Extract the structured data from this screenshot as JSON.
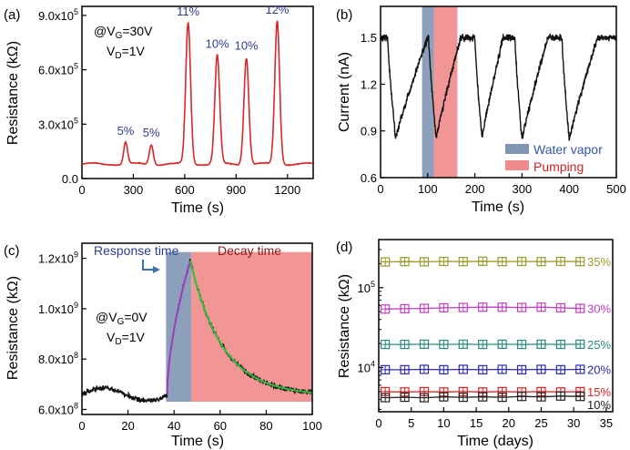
{
  "chart_data": [
    {
      "panel_label": "(a)",
      "type": "line",
      "xlabel": "Time (s)",
      "ylabel": "Resistance (kΩ)",
      "xlim": [
        0,
        1350
      ],
      "ylim": [
        0,
        950000
      ],
      "xticks": [
        0,
        300,
        600,
        900,
        1200
      ],
      "xtick_labels": [
        "0",
        "300",
        "600",
        "900",
        "1200"
      ],
      "yticks": [
        0,
        300000,
        600000,
        900000
      ],
      "ytick_labels": [
        {
          "mantissa": "0.0",
          "exp": ""
        },
        {
          "mantissa": "3.0x10",
          "exp": "5"
        },
        {
          "mantissa": "6.0x10",
          "exp": "5"
        },
        {
          "mantissa": "9.0x10",
          "exp": "5"
        }
      ],
      "series": [
        {
          "name": "Resistance",
          "color": "#d62728"
        }
      ],
      "baseline": 80000,
      "peaks": [
        {
          "x": 255,
          "y": 200000,
          "label": "5%"
        },
        {
          "x": 405,
          "y": 190000,
          "label": "5%"
        },
        {
          "x": 620,
          "y": 860000,
          "label": "11%"
        },
        {
          "x": 790,
          "y": 680000,
          "label": "10%"
        },
        {
          "x": 960,
          "y": 670000,
          "label": "10%"
        },
        {
          "x": 1140,
          "y": 870000,
          "label": "12%"
        }
      ],
      "annotation": {
        "line1_prefix": "@V",
        "line1_sub": "G",
        "line1_suffix": "=30V",
        "line2_prefix": "V",
        "line2_sub": "D",
        "line2_suffix": "=1V"
      }
    },
    {
      "panel_label": "(b)",
      "type": "line",
      "xlabel": "Time (s)",
      "ylabel": "Current (nA)",
      "xlim": [
        0,
        500
      ],
      "ylim": [
        0.6,
        1.7
      ],
      "xticks": [
        0,
        100,
        200,
        300,
        400,
        500
      ],
      "xtick_labels": [
        "0",
        "100",
        "200",
        "300",
        "400",
        "500"
      ],
      "yticks": [
        0.6,
        0.9,
        1.2,
        1.5
      ],
      "ytick_labels": [
        "0.6",
        "0.9",
        "1.2",
        "1.5"
      ],
      "baseline": 1.5,
      "cycles": [
        {
          "start": 15,
          "min_x": 32,
          "min_y": 0.85,
          "end": 100
        },
        {
          "start": 102,
          "min_x": 118,
          "min_y": 0.85,
          "end": 170
        },
        {
          "start": 200,
          "min_x": 215,
          "min_y": 0.85,
          "end": 260
        },
        {
          "start": 285,
          "min_x": 300,
          "min_y": 0.84,
          "end": 355
        },
        {
          "start": 385,
          "min_x": 400,
          "min_y": 0.84,
          "end": 460
        }
      ],
      "regions": [
        {
          "name": "Water vapor",
          "x0": 88,
          "x1": 113,
          "color": "#8196b4"
        },
        {
          "name": "Pumping",
          "x0": 113,
          "x1": 163,
          "color": "#f08a8a"
        }
      ],
      "legend": [
        {
          "label": "Water vapor",
          "color": "#8196b4"
        },
        {
          "label": "Pumping",
          "color": "#f08a8a"
        }
      ],
      "legend_position": "bottom-right"
    },
    {
      "panel_label": "(c)",
      "type": "line",
      "xlabel": "Time (s)",
      "ylabel": "Resistance (kΩ)",
      "xlim": [
        0,
        100
      ],
      "ylim": [
        580000000,
        1260000000
      ],
      "xticks": [
        0,
        20,
        40,
        60,
        80,
        100
      ],
      "xtick_labels": [
        "0",
        "20",
        "40",
        "60",
        "80",
        "100"
      ],
      "yticks": [
        600000000,
        800000000,
        1000000000,
        1200000000
      ],
      "ytick_labels": [
        {
          "mantissa": "6.0x10",
          "exp": "8"
        },
        {
          "mantissa": "8.0x10",
          "exp": "8"
        },
        {
          "mantissa": "1.0x10",
          "exp": "9"
        },
        {
          "mantissa": "1.2x10",
          "exp": "9"
        }
      ],
      "baseline": 660000000,
      "rise_start_x": 37,
      "peak": {
        "x": 47,
        "y": 1190000000
      },
      "end": {
        "x": 100,
        "y": 655000000
      },
      "regions": [
        {
          "name": "Response time",
          "x0": 36.5,
          "x1": 47.5,
          "color": "#8196b4"
        },
        {
          "name": "Decay time",
          "x0": 47.5,
          "x1": 100,
          "color": "#f08a8a"
        }
      ],
      "fits": [
        {
          "name": "rise fit",
          "color": "#9b3fbf"
        },
        {
          "name": "decay fit",
          "color": "#2fbf3f"
        }
      ],
      "labels": {
        "response": "Response time",
        "decay": "Decay time"
      },
      "annotation": {
        "line1_prefix": "@V",
        "line1_sub": "G",
        "line1_suffix": "=0V",
        "line2_prefix": "V",
        "line2_sub": "D",
        "line2_suffix": "=1V"
      }
    },
    {
      "panel_label": "(d)",
      "type": "scatter",
      "xlabel": "Time (days)",
      "ylabel": "Resistance (kΩ)",
      "xscale": "linear",
      "yscale": "log",
      "xlim": [
        0,
        36
      ],
      "ylim": [
        2800,
        400000
      ],
      "xticks": [
        0,
        5,
        10,
        15,
        20,
        25,
        30,
        35
      ],
      "xtick_labels": [
        "0",
        "5",
        "10",
        "15",
        "20",
        "25",
        "30",
        "35"
      ],
      "yticks": [
        10000,
        100000
      ],
      "ytick_labels": [
        {
          "mantissa": "10",
          "exp": "4"
        },
        {
          "mantissa": "10",
          "exp": "5"
        }
      ],
      "x": [
        1,
        4,
        7,
        10,
        13,
        16,
        19,
        22,
        25,
        28,
        31
      ],
      "series": [
        {
          "name": "35%",
          "color": "#9a9a28",
          "values": [
            210000,
            212000,
            211000,
            213000,
            212000,
            214000,
            212000,
            213000,
            212000,
            213000,
            212000
          ]
        },
        {
          "name": "30%",
          "color": "#c03ec0",
          "values": [
            54000,
            54500,
            55000,
            56000,
            56500,
            57000,
            57000,
            56500,
            57000,
            56000,
            55000
          ]
        },
        {
          "name": "25%",
          "color": "#2a8a82",
          "values": [
            19500,
            19500,
            19600,
            19500,
            19600,
            19500,
            19600,
            19500,
            19600,
            19500,
            19600
          ]
        },
        {
          "name": "20%",
          "color": "#2b2bb0",
          "values": [
            9400,
            9400,
            9500,
            9400,
            9500,
            9400,
            9500,
            9400,
            9500,
            9400,
            9500
          ]
        },
        {
          "name": "15%",
          "color": "#e02020",
          "values": [
            5000,
            4950,
            5000,
            4950,
            5000,
            4950,
            5000,
            4950,
            5000,
            4950,
            5000
          ]
        },
        {
          "name": "10%",
          "color": "#222222",
          "values": [
            4200,
            4250,
            4200,
            4300,
            4250,
            4300,
            4250,
            4350,
            4300,
            4400,
            4350
          ]
        }
      ]
    }
  ]
}
